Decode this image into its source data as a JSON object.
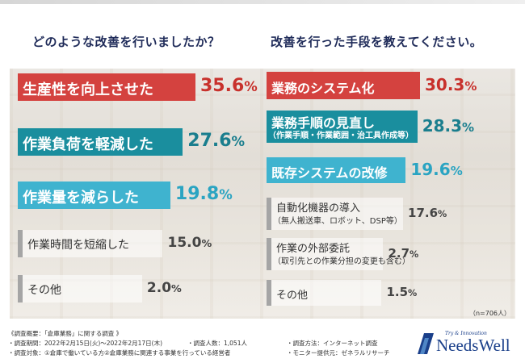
{
  "questions": {
    "left": "どのような改善を行いましたか？",
    "right": "改善を行った手段を教えてください。"
  },
  "colors": {
    "red": "#d4423f",
    "teal": "#1a8e9e",
    "lightblue": "#3fb3cf",
    "gray": "#a5a5a5",
    "navy": "#1a3f8a",
    "pct_red": "#c8312c",
    "pct_teal": "#1a7e8e",
    "pct_lightblue": "#2aa4c2",
    "pct_gray": "#444444"
  },
  "chart_data": [
    {
      "type": "bar",
      "orientation": "horizontal",
      "title": "どのような改善を行いましたか？",
      "categories": [
        "生産性を向上させた",
        "作業負荷を軽減した",
        "作業量を減らした",
        "作業時間を短縮した",
        "その他"
      ],
      "values": [
        35.6,
        27.6,
        19.8,
        15.0,
        2.0
      ],
      "value_labels": [
        "35.6",
        "27.6",
        "19.8",
        "15.0",
        "2.0"
      ],
      "unit": "%",
      "bar_colors": [
        "red",
        "teal",
        "lightblue",
        "gray",
        "gray"
      ]
    },
    {
      "type": "bar",
      "orientation": "horizontal",
      "title": "改善を行った手段を教えてください。",
      "categories": [
        "業務のシステム化",
        "業務手順の見直し",
        "既存システムの改修",
        "自動化機器の導入",
        "作業の外部委託",
        "その他"
      ],
      "sublabels": [
        "",
        "（作業手順・作業範囲・治工具作成等）",
        "",
        "（無人搬送車、ロボット、DSP等）",
        "（取引先との作業分担の変更も含む）",
        ""
      ],
      "values": [
        30.3,
        28.3,
        19.6,
        17.6,
        2.7,
        1.5
      ],
      "value_labels": [
        "30.3",
        "28.3",
        "19.6",
        "17.6",
        "2.7",
        "1.5"
      ],
      "unit": "%",
      "bar_colors": [
        "red",
        "teal",
        "lightblue",
        "gray",
        "gray",
        "gray"
      ]
    }
  ],
  "sample_note": "（n=706人）",
  "footer": {
    "title": "《調査概要：「倉庫業務」に関する調査 》",
    "period": "・調査期間：2022年2月15日(火)〜2022年2月17日(木)",
    "people": "・調査人数：1,051人",
    "method": "・調査方法：インターネット調査",
    "target": "・調査対象：①倉庫で働いている方②倉庫業務に関連する事業を行っている経営者",
    "provider": "・モニター提供元：ゼネラルリサーチ"
  },
  "logo": {
    "tagline": "Try & Innovation",
    "name": "NeedsWell"
  }
}
